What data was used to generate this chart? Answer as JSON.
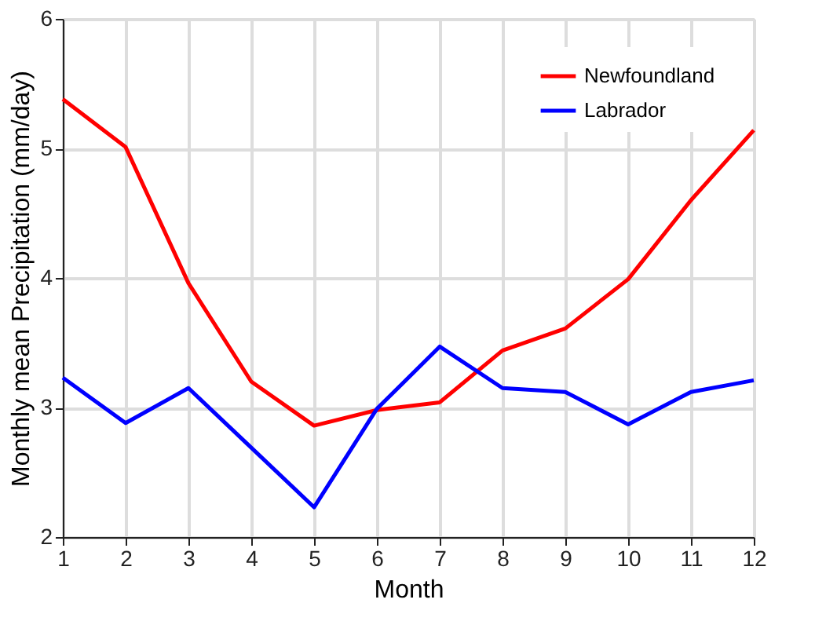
{
  "chart_data": {
    "type": "line",
    "xlabel": "Month",
    "ylabel": "Monthly mean Precipitation (mm/day)",
    "x": [
      1,
      2,
      3,
      4,
      5,
      6,
      7,
      8,
      9,
      10,
      11,
      12
    ],
    "series": [
      {
        "name": "Newfoundland",
        "color": "#ff0000",
        "values": [
          5.38,
          5.01,
          3.96,
          3.2,
          2.86,
          2.98,
          3.04,
          3.44,
          3.61,
          3.99,
          4.6,
          5.14
        ]
      },
      {
        "name": "Labrador",
        "color": "#0000ff",
        "values": [
          3.23,
          2.88,
          3.15,
          2.69,
          2.23,
          2.99,
          3.47,
          3.15,
          3.12,
          2.87,
          3.12,
          3.21
        ]
      }
    ],
    "xlim": [
      1,
      12
    ],
    "xticks": [
      1,
      2,
      3,
      4,
      5,
      6,
      7,
      8,
      9,
      10,
      11,
      12
    ],
    "ylim": [
      2,
      6
    ],
    "yticks": [
      2,
      3,
      4,
      5,
      6
    ],
    "grid": true,
    "legend": "top right",
    "marker": "none",
    "line_style": "solid"
  }
}
